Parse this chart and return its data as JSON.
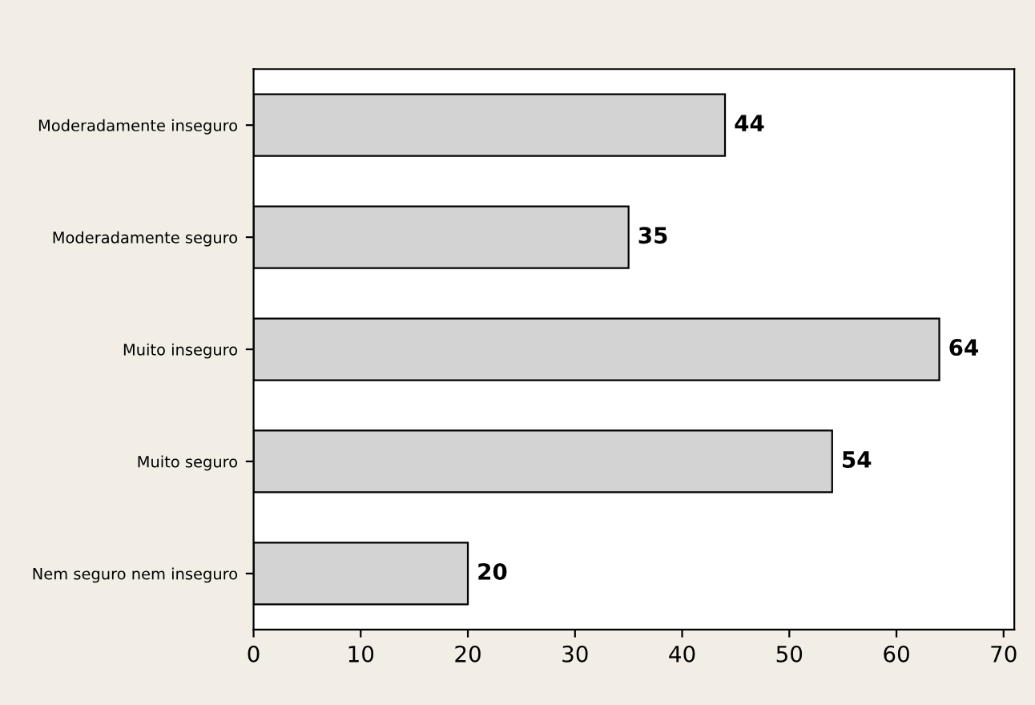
{
  "chart_data": {
    "type": "bar",
    "orientation": "horizontal",
    "categories": [
      "Moderadamente inseguro",
      "Moderadamente seguro",
      "Muito inseguro",
      "Muito seguro",
      "Nem seguro nem inseguro"
    ],
    "values": [
      44,
      35,
      64,
      54,
      20
    ],
    "color": "#d3d3d3",
    "xlim": [
      0,
      71
    ],
    "xticks": [
      0,
      10,
      20,
      30,
      40,
      50,
      60,
      70
    ],
    "grid": false,
    "data_labels": true
  }
}
